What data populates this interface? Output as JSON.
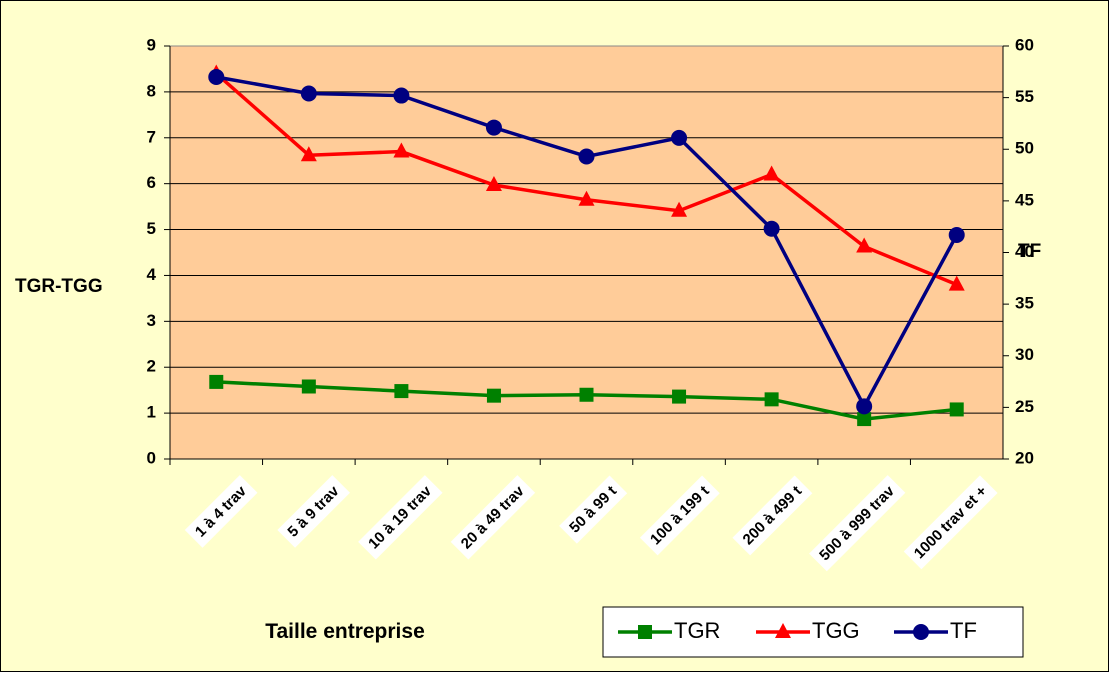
{
  "chart_data": {
    "type": "line",
    "categories": [
      "1 à 4 trav",
      "5 à 9 trav",
      "10 à 19 trav",
      "20 à 49 trav",
      "50 à 99 t",
      "100 à 199 t",
      "200 à 499 t",
      "500 à 999 trav",
      "1000 trav et +"
    ],
    "x_label": "Taille entreprise",
    "y_label": "TGR-TGG",
    "y2_label": "TF",
    "ylim": [
      0,
      9
    ],
    "yticks": [
      0,
      1,
      2,
      3,
      4,
      5,
      6,
      7,
      8,
      9
    ],
    "y2lim": [
      20,
      60
    ],
    "y2ticks": [
      20,
      25,
      30,
      35,
      40,
      45,
      50,
      55,
      60
    ],
    "grid": true,
    "legend": "bottom-right",
    "series": [
      {
        "name": "TGR",
        "color": "#008000",
        "marker": "square",
        "values": [
          1.68,
          1.58,
          1.48,
          1.38,
          1.4,
          1.36,
          1.3,
          0.87,
          1.08
        ]
      },
      {
        "name": "TGG",
        "color": "#ff0000",
        "marker": "triangle",
        "values": [
          8.4,
          6.62,
          6.7,
          5.97,
          5.65,
          5.41,
          6.2,
          4.63,
          3.8
        ]
      },
      {
        "name": "TF",
        "color": "#000080",
        "marker": "circle",
        "axis": "y2",
        "values": [
          57.0,
          55.4,
          55.2,
          52.1,
          49.3,
          51.1,
          42.3,
          25.1,
          41.7
        ]
      }
    ]
  }
}
